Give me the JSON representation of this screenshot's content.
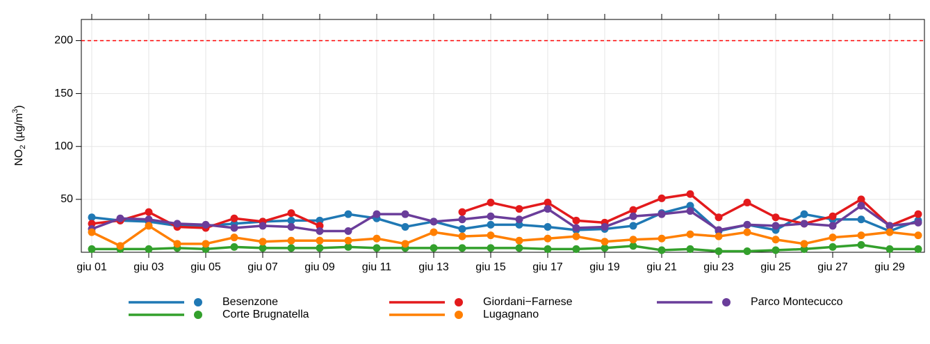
{
  "chart_data": {
    "type": "line",
    "ylabel": [
      "NO",
      "2",
      " (µg/m",
      "3",
      ")"
    ],
    "categories": [
      "giu 01",
      null,
      "giu 03",
      null,
      "giu 05",
      null,
      "giu 07",
      null,
      "giu 09",
      null,
      "giu 11",
      null,
      "giu 13",
      null,
      "giu 15",
      null,
      "giu 17",
      null,
      "giu 19",
      null,
      "giu 21",
      null,
      "giu 23",
      null,
      "giu 25",
      null,
      "giu 27",
      null,
      "giu 29",
      null
    ],
    "ylim": [
      0,
      220
    ],
    "yticks": [
      50,
      100,
      150,
      200
    ],
    "grid": true,
    "reference_line": {
      "value": 200,
      "color": "#ff0000"
    },
    "series": [
      {
        "name": "Besenzone",
        "color": "#1f78b4",
        "values": [
          33,
          30,
          29,
          25,
          25,
          27,
          29,
          30,
          30,
          36,
          32,
          24,
          29,
          22,
          26,
          26,
          24,
          21,
          22,
          25,
          37,
          44,
          20,
          26,
          21,
          36,
          31,
          31,
          20,
          30
        ]
      },
      {
        "name": "Giordani−Farnese",
        "color": "#e31a1c",
        "values": [
          27,
          30,
          38,
          24,
          23,
          32,
          29,
          37,
          25,
          null,
          null,
          null,
          null,
          38,
          47,
          41,
          47,
          30,
          28,
          40,
          51,
          55,
          33,
          47,
          33,
          27,
          34,
          50,
          25,
          36
        ]
      },
      {
        "name": "Parco Montecucco",
        "color": "#6a3d9a",
        "values": [
          22,
          32,
          31,
          27,
          26,
          23,
          25,
          24,
          20,
          20,
          36,
          36,
          29,
          31,
          34,
          31,
          41,
          23,
          24,
          34,
          36,
          39,
          21,
          26,
          25,
          27,
          25,
          44,
          25,
          28
        ]
      },
      {
        "name": "Corte Brugnatella",
        "color": "#33a02c",
        "values": [
          3,
          3,
          3,
          4,
          3,
          5,
          4,
          4,
          4,
          5,
          4,
          4,
          4,
          4,
          4,
          4,
          3,
          3,
          4,
          6,
          2,
          3,
          1,
          1,
          2,
          3,
          5,
          7,
          3,
          3
        ]
      },
      {
        "name": "Lugagnano",
        "color": "#ff7f00",
        "values": [
          19,
          6,
          25,
          8,
          8,
          14,
          10,
          11,
          11,
          11,
          13,
          8,
          19,
          15,
          16,
          11,
          13,
          15,
          10,
          12,
          13,
          17,
          15,
          19,
          12,
          8,
          14,
          16,
          19,
          16
        ]
      }
    ]
  }
}
